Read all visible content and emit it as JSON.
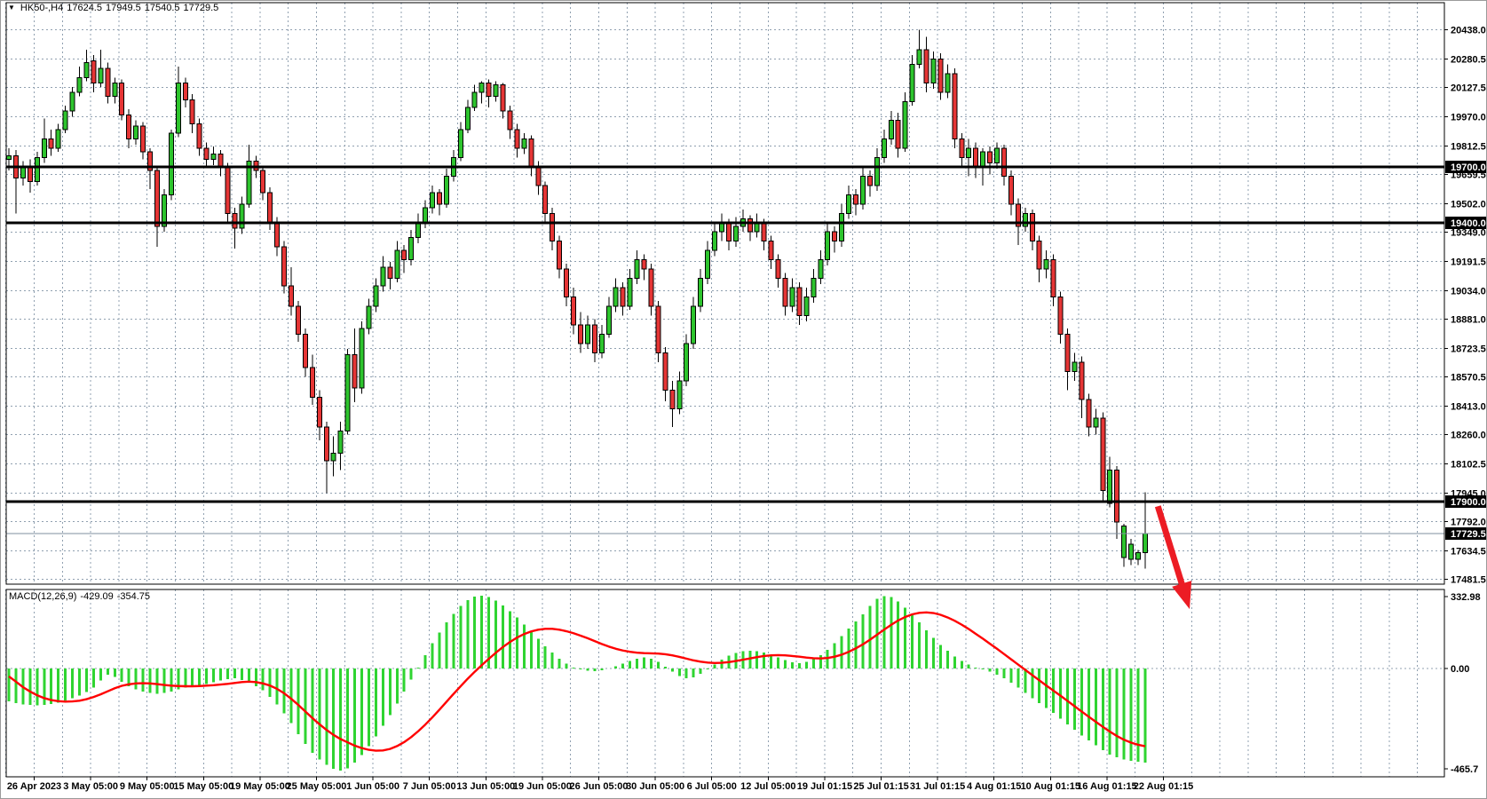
{
  "window": {
    "symbol": "HK50-,H4",
    "ohlc_readout": {
      "open": "17624.5",
      "high": "17949.5",
      "low": "17540.5",
      "close": "17729.5"
    },
    "dropdown_icon": "▼"
  },
  "price_axis": {
    "tick_labels": [
      "20438.0",
      "20280.5",
      "20127.5",
      "19970.0",
      "19812.5",
      "19659.5",
      "19502.0",
      "19349.0",
      "19191.5",
      "19034.0",
      "18881.0",
      "18723.5",
      "18570.5",
      "18413.0",
      "18260.0",
      "18102.5",
      "17945.0",
      "17792.0",
      "17634.5",
      "17481.5"
    ]
  },
  "levels": {
    "horizontal_lines": [
      19700.0,
      19400.0,
      17900.0
    ],
    "current_price": 17729.5,
    "tags": [
      "19700.0",
      "19400.0",
      "17900.0",
      "17729.5"
    ]
  },
  "time_axis": {
    "labels": [
      "26 Apr 2023",
      "3 May 05:00",
      "9 May 05:00",
      "15 May 05:00",
      "19 May 05:00",
      "25 May 05:00",
      "1 Jun 05:00",
      "7 Jun 05:00",
      "13 Jun 05:00",
      "19 Jun 05:00",
      "26 Jun 05:00",
      "30 Jun 05:00",
      "6 Jul 05:00",
      "12 Jul 05:00",
      "19 Jul 01:15",
      "25 Jul 01:15",
      "31 Jul 01:15",
      "4 Aug 01:15",
      "10 Aug 01:15",
      "16 Aug 01:15",
      "22 Aug 01:15"
    ]
  },
  "macd_panel": {
    "label": "MACD(12,26,9)",
    "main_value_text": "-429.09",
    "signal_value_text": "-354.75",
    "axis_max": "332.98",
    "axis_zero": "0.00",
    "axis_min": "-465.7"
  },
  "colors": {
    "bull": "#2DC42D",
    "bear": "#E53535",
    "wick": "#000000",
    "grid": "#90A0B0",
    "macd_hist": "#2FD431",
    "macd_signal": "#FF0000",
    "level_line": "#000000",
    "price_line": "#7F8F9F",
    "arrow": "#EC1C24",
    "tag_bg": "#000000",
    "tag_text": "#FFFFFF",
    "border": "#000000",
    "window_border": "#9A9A9A"
  },
  "chart_data": {
    "type": "candlestick",
    "title": "HK50-,H4",
    "timeframe": "H4",
    "legend_position": "none",
    "grid": true,
    "price_axis_range": [
      17456,
      20582
    ],
    "macd_axis_range": [
      -465.7,
      332.98
    ],
    "last_bar": {
      "open": 17624.5,
      "high": 17949.5,
      "low": 17540.5,
      "close": 17729.5
    },
    "macd_last": -429.09,
    "macd_signal_last": -354.75,
    "support_resistance": [
      19700.0,
      19400.0,
      17900.0
    ],
    "ohlc": [
      [
        19740,
        19800,
        19680,
        19760
      ],
      [
        19760,
        19790,
        19450,
        19640
      ],
      [
        19640,
        19730,
        19600,
        19700
      ],
      [
        19700,
        19740,
        19560,
        19620
      ],
      [
        19620,
        19780,
        19600,
        19750
      ],
      [
        19750,
        19960,
        19720,
        19850
      ],
      [
        19850,
        19900,
        19760,
        19800
      ],
      [
        19800,
        19930,
        19780,
        19900
      ],
      [
        19900,
        20030,
        19880,
        20000
      ],
      [
        20000,
        20130,
        19970,
        20100
      ],
      [
        20100,
        20240,
        20080,
        20180
      ],
      [
        20180,
        20330,
        20160,
        20260
      ],
      [
        20270,
        20300,
        20100,
        20150
      ],
      [
        20150,
        20330,
        20130,
        20230
      ],
      [
        20230,
        20260,
        20040,
        20080
      ],
      [
        20080,
        20180,
        20040,
        20150
      ],
      [
        20150,
        20170,
        19950,
        19980
      ],
      [
        19980,
        20010,
        19800,
        19850
      ],
      [
        19850,
        19950,
        19820,
        19920
      ],
      [
        19920,
        19940,
        19740,
        19780
      ],
      [
        19780,
        19800,
        19580,
        19680
      ],
      [
        19680,
        19700,
        19270,
        19380
      ],
      [
        19380,
        19580,
        19350,
        19550
      ],
      [
        19550,
        19900,
        19520,
        19880
      ],
      [
        19880,
        20240,
        19860,
        20150
      ],
      [
        20150,
        20180,
        20020,
        20060
      ],
      [
        20060,
        20090,
        19880,
        19930
      ],
      [
        19930,
        19960,
        19760,
        19800
      ],
      [
        19800,
        19830,
        19700,
        19740
      ],
      [
        19740,
        19810,
        19710,
        19770
      ],
      [
        19770,
        19790,
        19650,
        19700
      ],
      [
        19700,
        19720,
        19400,
        19450
      ],
      [
        19450,
        19480,
        19260,
        19370
      ],
      [
        19370,
        19540,
        19340,
        19500
      ],
      [
        19500,
        19820,
        19480,
        19730
      ],
      [
        19730,
        19760,
        19640,
        19680
      ],
      [
        19680,
        19700,
        19520,
        19560
      ],
      [
        19560,
        19590,
        19360,
        19400
      ],
      [
        19400,
        19430,
        19220,
        19270
      ],
      [
        19270,
        19300,
        19020,
        19060
      ],
      [
        19060,
        19160,
        18900,
        18950
      ],
      [
        18950,
        18980,
        18760,
        18800
      ],
      [
        18800,
        18830,
        18570,
        18620
      ],
      [
        18620,
        18690,
        18420,
        18460
      ],
      [
        18460,
        18500,
        18230,
        18300
      ],
      [
        18300,
        18330,
        17945,
        18120
      ],
      [
        18120,
        18250,
        18035,
        18160
      ],
      [
        18160,
        18330,
        18070,
        18280
      ],
      [
        18280,
        18720,
        18260,
        18690
      ],
      [
        18690,
        18830,
        18434,
        18510
      ],
      [
        18510,
        18870,
        18480,
        18830
      ],
      [
        18830,
        18990,
        18800,
        18950
      ],
      [
        18950,
        19100,
        18920,
        19060
      ],
      [
        19060,
        19220,
        19030,
        19160
      ],
      [
        19160,
        19190,
        19040,
        19100
      ],
      [
        19100,
        19300,
        19080,
        19250
      ],
      [
        19250,
        19280,
        19130,
        19200
      ],
      [
        19200,
        19360,
        19170,
        19320
      ],
      [
        19320,
        19450,
        19290,
        19400
      ],
      [
        19400,
        19520,
        19370,
        19480
      ],
      [
        19480,
        19600,
        19450,
        19560
      ],
      [
        19560,
        19580,
        19440,
        19500
      ],
      [
        19500,
        19690,
        19480,
        19650
      ],
      [
        19650,
        19790,
        19620,
        19750
      ],
      [
        19750,
        19940,
        19730,
        19900
      ],
      [
        19900,
        20060,
        19880,
        20020
      ],
      [
        20020,
        20140,
        20000,
        20100
      ],
      [
        20100,
        20160,
        20040,
        20150
      ],
      [
        20150,
        20170,
        20020,
        20080
      ],
      [
        20080,
        20160,
        20050,
        20140
      ],
      [
        20140,
        20150,
        19960,
        20000
      ],
      [
        20000,
        20030,
        19850,
        19900
      ],
      [
        19900,
        19930,
        19750,
        19800
      ],
      [
        19800,
        19880,
        19770,
        19850
      ],
      [
        19850,
        19870,
        19650,
        19700
      ],
      [
        19700,
        19730,
        19550,
        19600
      ],
      [
        19600,
        19620,
        19400,
        19450
      ],
      [
        19450,
        19480,
        19250,
        19300
      ],
      [
        19300,
        19330,
        19100,
        19150
      ],
      [
        19150,
        19180,
        18950,
        19000
      ],
      [
        19000,
        19050,
        18800,
        18850
      ],
      [
        18850,
        18920,
        18700,
        18750
      ],
      [
        18750,
        18900,
        18720,
        18850
      ],
      [
        18850,
        18880,
        18650,
        18700
      ],
      [
        18700,
        18850,
        18670,
        18800
      ],
      [
        18800,
        19000,
        18780,
        18950
      ],
      [
        18950,
        19100,
        18920,
        19050
      ],
      [
        19050,
        19080,
        18900,
        18950
      ],
      [
        18950,
        19150,
        18930,
        19100
      ],
      [
        19100,
        19250,
        19070,
        19200
      ],
      [
        19200,
        19230,
        19090,
        19150
      ],
      [
        19150,
        19180,
        18900,
        18950
      ],
      [
        18950,
        18980,
        18650,
        18700
      ],
      [
        18700,
        18730,
        18440,
        18500
      ],
      [
        18500,
        18550,
        18300,
        18400
      ],
      [
        18400,
        18600,
        18370,
        18550
      ],
      [
        18550,
        18800,
        18520,
        18750
      ],
      [
        18750,
        19000,
        18720,
        18950
      ],
      [
        18950,
        19150,
        18920,
        19100
      ],
      [
        19100,
        19300,
        19070,
        19250
      ],
      [
        19250,
        19400,
        19220,
        19350
      ],
      [
        19350,
        19450,
        19300,
        19400
      ],
      [
        19400,
        19420,
        19250,
        19300
      ],
      [
        19300,
        19430,
        19270,
        19380
      ],
      [
        19380,
        19470,
        19350,
        19420
      ],
      [
        19420,
        19440,
        19300,
        19350
      ],
      [
        19350,
        19450,
        19320,
        19400
      ],
      [
        19400,
        19420,
        19250,
        19300
      ],
      [
        19300,
        19330,
        19150,
        19200
      ],
      [
        19200,
        19230,
        19050,
        19100
      ],
      [
        19100,
        19130,
        18900,
        18950
      ],
      [
        18950,
        19100,
        18920,
        19050
      ],
      [
        19050,
        19080,
        18850,
        18900
      ],
      [
        18900,
        19050,
        18870,
        19000
      ],
      [
        19000,
        19150,
        18970,
        19100
      ],
      [
        19100,
        19250,
        19070,
        19200
      ],
      [
        19200,
        19400,
        19170,
        19350
      ],
      [
        19350,
        19380,
        19240,
        19300
      ],
      [
        19300,
        19500,
        19270,
        19450
      ],
      [
        19450,
        19600,
        19420,
        19550
      ],
      [
        19550,
        19580,
        19440,
        19500
      ],
      [
        19500,
        19700,
        19470,
        19650
      ],
      [
        19650,
        19680,
        19540,
        19600
      ],
      [
        19600,
        19800,
        19570,
        19750
      ],
      [
        19750,
        19900,
        19720,
        19850
      ],
      [
        19850,
        20000,
        19820,
        19950
      ],
      [
        19950,
        19990,
        19750,
        19800
      ],
      [
        19800,
        20100,
        19780,
        20050
      ],
      [
        20050,
        20300,
        20030,
        20250
      ],
      [
        20250,
        20438,
        20230,
        20330
      ],
      [
        20330,
        20400,
        20100,
        20150
      ],
      [
        20150,
        20320,
        20120,
        20280
      ],
      [
        20280,
        20310,
        20060,
        20100
      ],
      [
        20100,
        20250,
        20070,
        20200
      ],
      [
        20200,
        20230,
        19800,
        19850
      ],
      [
        19850,
        19880,
        19700,
        19750
      ],
      [
        19750,
        19850,
        19650,
        19800
      ],
      [
        19800,
        19830,
        19640,
        19700
      ],
      [
        19700,
        19800,
        19600,
        19780
      ],
      [
        19780,
        19810,
        19660,
        19720
      ],
      [
        19720,
        19830,
        19690,
        19800
      ],
      [
        19800,
        19820,
        19600,
        19650
      ],
      [
        19650,
        19680,
        19440,
        19500
      ],
      [
        19500,
        19530,
        19280,
        19380
      ],
      [
        19380,
        19480,
        19350,
        19450
      ],
      [
        19450,
        19470,
        19250,
        19300
      ],
      [
        19300,
        19330,
        19080,
        19150
      ],
      [
        19150,
        19250,
        19100,
        19200
      ],
      [
        19200,
        19230,
        18950,
        19000
      ],
      [
        19000,
        19030,
        18750,
        18800
      ],
      [
        18800,
        18830,
        18500,
        18600
      ],
      [
        18600,
        18700,
        18550,
        18650
      ],
      [
        18650,
        18680,
        18350,
        18450
      ],
      [
        18450,
        18480,
        18250,
        18300
      ],
      [
        18300,
        18400,
        18260,
        18350
      ],
      [
        18350,
        18380,
        17905,
        17960
      ],
      [
        17890,
        18140,
        17870,
        18070
      ],
      [
        18070,
        18090,
        17700,
        17790
      ],
      [
        17600,
        17780,
        17550,
        17770
      ],
      [
        17590,
        17700,
        17560,
        17670
      ],
      [
        17590,
        17640,
        17560,
        17625
      ],
      [
        17624.5,
        17949.5,
        17540.5,
        17729.5
      ]
    ],
    "macd_histogram": [
      -150,
      -158,
      -163,
      -167,
      -168,
      -166,
      -162,
      -155,
      -146,
      -136,
      -124,
      -108,
      -88,
      -55,
      -28,
      -38,
      -60,
      -80,
      -95,
      -106,
      -112,
      -115,
      -112,
      -105,
      -96,
      -88,
      -82,
      -76,
      -70,
      -63,
      -55,
      -48,
      -45,
      -52,
      -65,
      -80,
      -100,
      -130,
      -165,
      -205,
      -250,
      -300,
      -345,
      -385,
      -415,
      -440,
      -458,
      -465.7,
      -455,
      -430,
      -395,
      -355,
      -310,
      -262,
      -212,
      -160,
      -105,
      -50,
      5,
      60,
      115,
      165,
      210,
      250,
      285,
      312,
      328,
      333,
      325,
      310,
      288,
      262,
      232,
      200,
      168,
      135,
      102,
      72,
      45,
      22,
      5,
      -5,
      -10,
      -12,
      -8,
      0,
      10,
      22,
      35,
      45,
      50,
      45,
      30,
      8,
      -15,
      -35,
      -45,
      -40,
      -25,
      -5,
      18,
      40,
      58,
      70,
      78,
      80,
      78,
      72,
      62,
      50,
      38,
      28,
      25,
      30,
      42,
      60,
      85,
      115,
      148,
      182,
      215,
      248,
      285,
      318,
      330,
      325,
      305,
      278,
      245,
      210,
      175,
      140,
      108,
      80,
      55,
      35,
      18,
      5,
      -5,
      -15,
      -28,
      -45,
      -65,
      -88,
      -112,
      -135,
      -158,
      -180,
      -203,
      -228,
      -255,
      -280,
      -305,
      -328,
      -350,
      -372,
      -392,
      -405,
      -415,
      -421,
      -426,
      -429.09
    ],
    "macd_signal_line": [
      -36,
      -60,
      -85,
      -105,
      -122,
      -135,
      -144,
      -149,
      -151,
      -150,
      -147,
      -140,
      -130,
      -118,
      -104,
      -90,
      -79,
      -72,
      -68,
      -67,
      -68,
      -71,
      -75,
      -78,
      -80,
      -81,
      -81,
      -80,
      -78,
      -76,
      -73,
      -70,
      -66,
      -62,
      -60,
      -62,
      -68,
      -78,
      -93,
      -113,
      -138,
      -166,
      -196,
      -226,
      -254,
      -280,
      -303,
      -322,
      -337,
      -352,
      -363,
      -371,
      -375,
      -374,
      -367,
      -354,
      -336,
      -313,
      -286,
      -256,
      -223,
      -188,
      -152,
      -116,
      -81,
      -47,
      -15,
      15,
      44,
      72,
      98,
      121,
      141,
      157,
      169,
      177,
      181,
      181,
      177,
      170,
      161,
      150,
      138,
      125,
      112,
      100,
      90,
      82,
      76,
      72,
      70,
      69,
      68,
      65,
      60,
      53,
      45,
      37,
      31,
      27,
      25,
      26,
      29,
      34,
      40,
      46,
      52,
      57,
      60,
      61,
      60,
      57,
      54,
      50,
      47,
      46,
      48,
      54,
      63,
      76,
      92,
      110,
      131,
      154,
      177,
      199,
      219,
      235,
      247,
      254,
      256,
      253,
      245,
      233,
      218,
      200,
      180,
      158,
      136,
      113,
      90,
      66,
      42,
      18,
      -6,
      -30,
      -54,
      -78,
      -101,
      -124,
      -148,
      -172,
      -196,
      -220,
      -243,
      -266,
      -288,
      -308,
      -325,
      -338,
      -348,
      -354.75
    ],
    "annotations": {
      "arrow": {
        "type": "trend-arrow",
        "direction": "down",
        "from_bar": 162.8,
        "from_price": 17875,
        "to_bar": 167.3,
        "to_price": 17322
      }
    }
  }
}
